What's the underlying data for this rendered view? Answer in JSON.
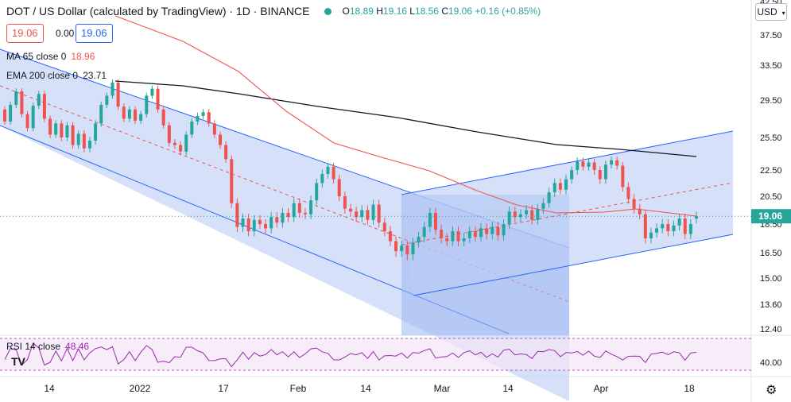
{
  "header": {
    "symbol_title": "DOT / US Dollar (calculated by TradingView) · 1D · BINANCE",
    "open_label": "O",
    "open": "18.89",
    "high_label": "H",
    "high": "19.16",
    "low_label": "L",
    "low": "18.56",
    "close_label": "C",
    "close": "19.06",
    "change": "+0.16 (+0.85%)",
    "bid": "19.06",
    "spread": "0.00",
    "ask": "19.06"
  },
  "indicators": {
    "ma_label": "MA 65 close 0",
    "ma_value": "18.96",
    "ema_label": "EMA 200 close 0",
    "ema_value": "23.71",
    "rsi_label": "RSI 14 close",
    "rsi_value": "48.46"
  },
  "currency": {
    "label": "USD",
    "arrow": "▾"
  },
  "settings_icon": "gear-icon",
  "chart_data": {
    "type": "candlestick",
    "price_axis_ticks": [
      "37.50",
      "33.50",
      "29.50",
      "25.50",
      "22.50",
      "20.50",
      "18.50",
      "16.50",
      "15.00",
      "13.60",
      "12.40"
    ],
    "rsi_axis_ticks": [
      "40.00"
    ],
    "top_tick_partial": "42.50",
    "time_axis_labels": [
      "14",
      "2022",
      "17",
      "Feb",
      "14",
      "Mar",
      "14",
      "Apr",
      "18"
    ],
    "last_price": "19.06",
    "colors": {
      "up": "#26a69a",
      "down": "#ef5350",
      "ma": "#ef5350",
      "ema": "#131722",
      "channel_fill": "#bbcdf5",
      "channel_line": "#2962ff",
      "rsi": "#9c27b0",
      "rsi_band": "#f3e5f5"
    },
    "candles": [
      {
        "o": 28.5,
        "c": 27.2
      },
      {
        "o": 27.2,
        "c": 29.0
      },
      {
        "o": 29.0,
        "c": 30.5
      },
      {
        "o": 30.5,
        "c": 28.0
      },
      {
        "o": 28.0,
        "c": 26.5
      },
      {
        "o": 26.5,
        "c": 28.9
      },
      {
        "o": 28.9,
        "c": 30.2
      },
      {
        "o": 30.2,
        "c": 27.5
      },
      {
        "o": 27.5,
        "c": 25.8
      },
      {
        "o": 25.8,
        "c": 27.0
      },
      {
        "o": 27.0,
        "c": 25.5
      },
      {
        "o": 25.5,
        "c": 26.8
      },
      {
        "o": 26.8,
        "c": 24.8
      },
      {
        "o": 24.8,
        "c": 25.9
      },
      {
        "o": 25.9,
        "c": 24.5
      },
      {
        "o": 24.5,
        "c": 25.2
      },
      {
        "o": 25.2,
        "c": 27.0
      },
      {
        "o": 27.0,
        "c": 29.0
      },
      {
        "o": 29.0,
        "c": 30.0
      },
      {
        "o": 30.0,
        "c": 31.5
      },
      {
        "o": 31.5,
        "c": 28.8
      },
      {
        "o": 28.8,
        "c": 27.5
      },
      {
        "o": 27.5,
        "c": 28.5
      },
      {
        "o": 28.5,
        "c": 27.3
      },
      {
        "o": 27.3,
        "c": 28.0
      },
      {
        "o": 28.0,
        "c": 30.0
      },
      {
        "o": 30.0,
        "c": 30.8
      },
      {
        "o": 30.8,
        "c": 28.5
      },
      {
        "o": 28.5,
        "c": 26.8
      },
      {
        "o": 26.8,
        "c": 25.0
      },
      {
        "o": 25.0,
        "c": 24.8
      },
      {
        "o": 24.8,
        "c": 24.2
      },
      {
        "o": 24.2,
        "c": 25.8
      },
      {
        "o": 25.8,
        "c": 27.2
      },
      {
        "o": 27.2,
        "c": 27.8
      },
      {
        "o": 27.8,
        "c": 28.2
      },
      {
        "o": 28.2,
        "c": 27.0
      },
      {
        "o": 27.0,
        "c": 25.8
      },
      {
        "o": 25.8,
        "c": 24.8
      },
      {
        "o": 24.8,
        "c": 23.5
      },
      {
        "o": 23.5,
        "c": 20.0
      },
      {
        "o": 20.0,
        "c": 18.3
      },
      {
        "o": 18.3,
        "c": 18.9
      },
      {
        "o": 18.9,
        "c": 18.0
      },
      {
        "o": 18.0,
        "c": 18.8
      },
      {
        "o": 18.8,
        "c": 18.5
      },
      {
        "o": 18.5,
        "c": 18.2
      },
      {
        "o": 18.2,
        "c": 19.0
      },
      {
        "o": 19.0,
        "c": 18.6
      },
      {
        "o": 18.6,
        "c": 19.3
      },
      {
        "o": 19.3,
        "c": 19.0
      },
      {
        "o": 19.0,
        "c": 20.0
      },
      {
        "o": 20.0,
        "c": 19.3
      },
      {
        "o": 19.3,
        "c": 19.2
      },
      {
        "o": 19.2,
        "c": 20.2
      },
      {
        "o": 20.2,
        "c": 21.5
      },
      {
        "o": 21.5,
        "c": 22.2
      },
      {
        "o": 22.2,
        "c": 22.8
      },
      {
        "o": 22.8,
        "c": 21.8
      },
      {
        "o": 21.8,
        "c": 20.5
      },
      {
        "o": 20.5,
        "c": 19.6
      },
      {
        "o": 19.6,
        "c": 19.4
      },
      {
        "o": 19.4,
        "c": 19.0
      },
      {
        "o": 19.0,
        "c": 19.5
      },
      {
        "o": 19.5,
        "c": 18.8
      },
      {
        "o": 18.8,
        "c": 19.9
      },
      {
        "o": 19.9,
        "c": 18.6
      },
      {
        "o": 18.6,
        "c": 18.0
      },
      {
        "o": 18.0,
        "c": 17.3
      },
      {
        "o": 17.3,
        "c": 16.6
      },
      {
        "o": 16.6,
        "c": 17.0
      },
      {
        "o": 17.0,
        "c": 16.4
      },
      {
        "o": 16.4,
        "c": 17.2
      },
      {
        "o": 17.2,
        "c": 17.6
      },
      {
        "o": 17.6,
        "c": 18.3
      },
      {
        "o": 18.3,
        "c": 19.3
      },
      {
        "o": 19.3,
        "c": 18.1
      },
      {
        "o": 18.1,
        "c": 17.5
      },
      {
        "o": 17.5,
        "c": 17.3
      },
      {
        "o": 17.3,
        "c": 18.0
      },
      {
        "o": 18.0,
        "c": 17.3
      },
      {
        "o": 17.3,
        "c": 17.5
      },
      {
        "o": 17.5,
        "c": 18.0
      },
      {
        "o": 18.0,
        "c": 17.6
      },
      {
        "o": 17.6,
        "c": 18.2
      },
      {
        "o": 18.2,
        "c": 17.8
      },
      {
        "o": 17.8,
        "c": 18.3
      },
      {
        "o": 18.3,
        "c": 17.7
      },
      {
        "o": 17.7,
        "c": 18.5
      },
      {
        "o": 18.5,
        "c": 19.4
      },
      {
        "o": 19.4,
        "c": 19.0
      },
      {
        "o": 19.0,
        "c": 19.2
      },
      {
        "o": 19.2,
        "c": 19.5
      },
      {
        "o": 19.5,
        "c": 18.8
      },
      {
        "o": 18.8,
        "c": 19.6
      },
      {
        "o": 19.6,
        "c": 20.0
      },
      {
        "o": 20.0,
        "c": 20.8
      },
      {
        "o": 20.8,
        "c": 21.5
      },
      {
        "o": 21.5,
        "c": 21.0
      },
      {
        "o": 21.0,
        "c": 21.8
      },
      {
        "o": 21.8,
        "c": 22.5
      },
      {
        "o": 22.5,
        "c": 23.3
      },
      {
        "o": 23.3,
        "c": 22.8
      },
      {
        "o": 22.8,
        "c": 23.2
      },
      {
        "o": 23.2,
        "c": 22.5
      },
      {
        "o": 22.5,
        "c": 21.8
      },
      {
        "o": 21.8,
        "c": 23.0
      },
      {
        "o": 23.0,
        "c": 23.4
      },
      {
        "o": 23.4,
        "c": 22.9
      },
      {
        "o": 22.9,
        "c": 21.2
      },
      {
        "o": 21.2,
        "c": 20.3
      },
      {
        "o": 20.3,
        "c": 19.6
      },
      {
        "o": 19.6,
        "c": 19.2
      },
      {
        "o": 19.2,
        "c": 17.5
      },
      {
        "o": 17.5,
        "c": 17.9
      },
      {
        "o": 17.9,
        "c": 18.2
      },
      {
        "o": 18.2,
        "c": 18.5
      },
      {
        "o": 18.5,
        "c": 18.0
      },
      {
        "o": 18.0,
        "c": 18.4
      },
      {
        "o": 18.4,
        "c": 18.9
      },
      {
        "o": 18.9,
        "c": 17.8
      },
      {
        "o": 17.8,
        "c": 18.5
      },
      {
        "o": 18.89,
        "c": 19.06
      }
    ]
  }
}
